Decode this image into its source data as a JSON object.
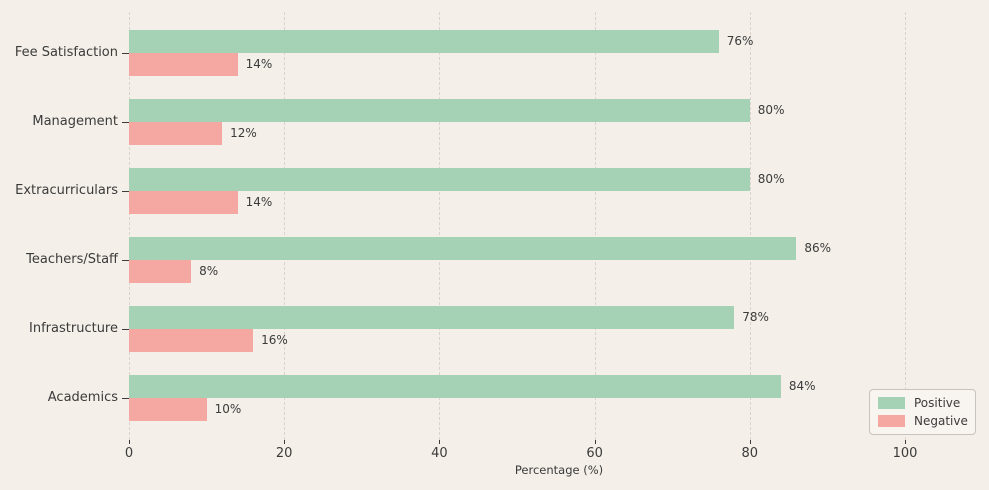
{
  "chart_data": {
    "type": "bar",
    "orientation": "horizontal",
    "categories": [
      "Fee Satisfaction",
      "Management",
      "Extracurriculars",
      "Teachers/Staff",
      "Infrastructure",
      "Academics"
    ],
    "series": [
      {
        "name": "Positive",
        "color": "#a5d2b5",
        "values": [
          76,
          80,
          80,
          86,
          78,
          84
        ]
      },
      {
        "name": "Negative",
        "color": "#f5a8a1",
        "values": [
          14,
          12,
          14,
          8,
          16,
          10
        ]
      }
    ],
    "value_labels": {
      "Positive": [
        "76%",
        "80%",
        "80%",
        "86%",
        "78%",
        "84%"
      ],
      "Negative": [
        "14%",
        "12%",
        "14%",
        "8%",
        "16%",
        "10%"
      ]
    },
    "title": "",
    "xlabel": "Percentage (%)",
    "ylabel": "",
    "xticks": [
      0,
      20,
      40,
      60,
      80,
      100
    ],
    "xtick_labels": [
      "0",
      "20",
      "40",
      "60",
      "80",
      "100"
    ],
    "xlim": [
      0,
      110.8
    ],
    "grid": "vertical-dashed",
    "legend": {
      "position": "lower-right",
      "entries": [
        "Positive",
        "Negative"
      ]
    }
  },
  "colors": {
    "background": "#f4efe8",
    "grid": "#d9d3cc",
    "text": "#3b3b3b",
    "positive": "#a5d2b5",
    "negative": "#f5a8a1",
    "legend_bg": "#f8f5f0",
    "legend_border": "#c8c3bc"
  }
}
